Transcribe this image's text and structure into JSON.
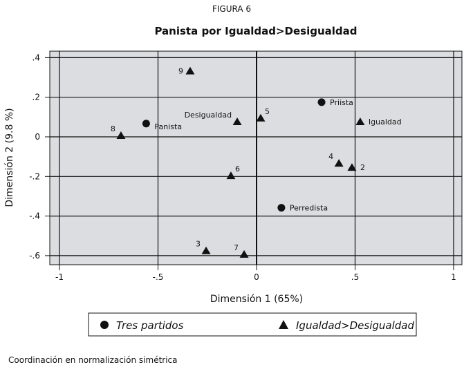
{
  "chart_data": {
    "type": "scatter",
    "figure_label": "FIGURA 6",
    "title": "Panista por Igualdad>Desigualdad",
    "xlabel": "Dimensión 1 (65%)",
    "ylabel": "Dimensión 2 (9.8 %)",
    "xlim": [
      -1.05,
      1.04
    ],
    "ylim": [
      -0.65,
      0.43
    ],
    "xticks": [
      -1,
      -0.5,
      0,
      0.5,
      1
    ],
    "xtick_labels": [
      "-1",
      "-.5",
      "0",
      ".5",
      "1"
    ],
    "yticks": [
      0.4,
      0.2,
      0,
      -0.2,
      -0.4,
      -0.6
    ],
    "ytick_labels": [
      ".4",
      ".2",
      "0",
      "-.2",
      "-.4",
      "-.6"
    ],
    "grid": true,
    "background": "#dcdde0",
    "series": [
      {
        "name": "Tres partidos",
        "marker": "circle",
        "points": [
          {
            "label": "Priista",
            "x": 0.33,
            "y": 0.175,
            "label_pos": "right"
          },
          {
            "label": "Panista",
            "x": -0.56,
            "y": 0.067,
            "label_pos": "right"
          },
          {
            "label": "Perredista",
            "x": 0.126,
            "y": -0.358,
            "label_pos": "right"
          }
        ]
      },
      {
        "name": "Igualdad>Desigualdad",
        "marker": "triangle",
        "points": [
          {
            "label": "9",
            "x": -0.337,
            "y": 0.333,
            "label_pos": "left"
          },
          {
            "label": "Desigualdad",
            "x": -0.098,
            "y": 0.077,
            "label_pos": "upleft"
          },
          {
            "label": "5",
            "x": 0.021,
            "y": 0.095,
            "label_pos": "upright"
          },
          {
            "label": "Igualdad",
            "x": 0.526,
            "y": 0.077,
            "label_pos": "right"
          },
          {
            "label": "8",
            "x": -0.688,
            "y": 0.007,
            "label_pos": "upleft"
          },
          {
            "label": "4",
            "x": 0.418,
            "y": -0.133,
            "label_pos": "upleft"
          },
          {
            "label": "2",
            "x": 0.484,
            "y": -0.154,
            "label_pos": "right"
          },
          {
            "label": "6",
            "x": -0.13,
            "y": -0.196,
            "label_pos": "upright"
          },
          {
            "label": "3",
            "x": -0.256,
            "y": -0.575,
            "label_pos": "upleft"
          },
          {
            "label": "7",
            "x": -0.063,
            "y": -0.593,
            "label_pos": "upleft"
          }
        ]
      }
    ],
    "legend": {
      "placement": "bottom",
      "entries": [
        "Tres partidos",
        "Igualdad>Desigualdad"
      ]
    },
    "note": "Coordinación en normalización simétrica"
  }
}
